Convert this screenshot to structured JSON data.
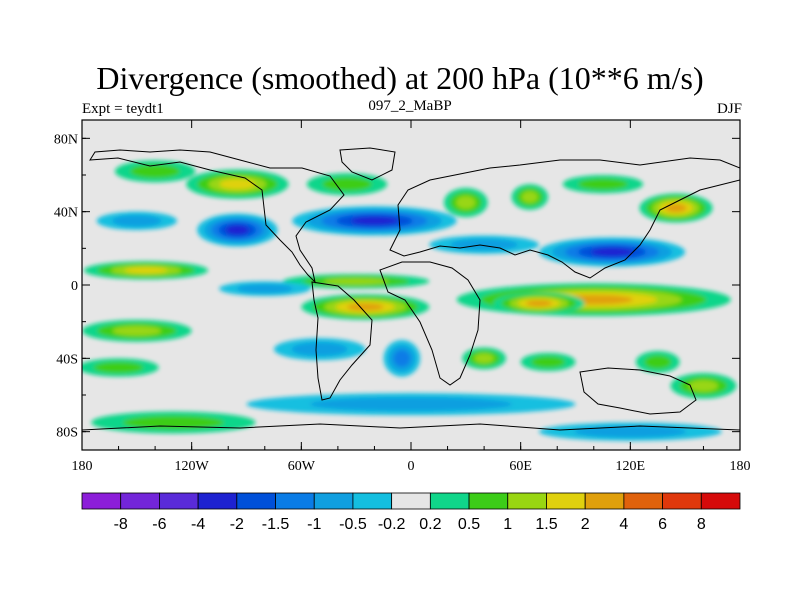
{
  "header": {
    "title": "Divergence (smoothed) at 200 hPa (10**6 m/s)",
    "left_label": "Expt = teydt1",
    "center_label": "097_2_MaBP",
    "right_label": "DJF"
  },
  "chart_data": {
    "type": "heatmap",
    "title": "Divergence (smoothed) at 200 hPa (10**6 m/s)",
    "xlabel": "",
    "ylabel": "",
    "xlim": [
      -180,
      180
    ],
    "ylim": [
      -90,
      90
    ],
    "x_ticks": [
      {
        "value": -180,
        "label": "180"
      },
      {
        "value": -120,
        "label": "120W"
      },
      {
        "value": -60,
        "label": "60W"
      },
      {
        "value": 0,
        "label": "0"
      },
      {
        "value": 60,
        "label": "60E"
      },
      {
        "value": 120,
        "label": "120E"
      },
      {
        "value": 180,
        "label": "180"
      }
    ],
    "y_ticks": [
      {
        "value": 80,
        "label": "80N"
      },
      {
        "value": 40,
        "label": "40N"
      },
      {
        "value": 0,
        "label": "0"
      },
      {
        "value": -40,
        "label": "40S"
      },
      {
        "value": -80,
        "label": "80S"
      }
    ],
    "colorbar": {
      "labels": [
        "-8",
        "-6",
        "-4",
        "-2",
        "-1.5",
        "-1",
        "-0.5",
        "-0.2",
        "0.2",
        "0.5",
        "1",
        "1.5",
        "2",
        "4",
        "6",
        "8"
      ],
      "colors": [
        "#8c1ed9",
        "#7325d9",
        "#5a2bd9",
        "#1e22d1",
        "#0050d9",
        "#0a7ce6",
        "#109fe0",
        "#14bfe0",
        "#e6e6e6",
        "#10d68a",
        "#3ccd18",
        "#99d612",
        "#e0d10e",
        "#e0a00c",
        "#e0620c",
        "#e0380c",
        "#d60a0a"
      ]
    },
    "anomalies": [
      {
        "lon": -145,
        "lat": 8,
        "rx": 34,
        "ry": 5,
        "value": 1.6
      },
      {
        "lon": -150,
        "lat": -25,
        "rx": 30,
        "ry": 6,
        "value": 1.2
      },
      {
        "lon": -160,
        "lat": -45,
        "rx": 22,
        "ry": 5,
        "value": 1.0
      },
      {
        "lon": -95,
        "lat": 55,
        "rx": 28,
        "ry": 8,
        "value": 1.6
      },
      {
        "lon": -140,
        "lat": 62,
        "rx": 22,
        "ry": 6,
        "value": 0.8
      },
      {
        "lon": -35,
        "lat": 55,
        "rx": 22,
        "ry": 6,
        "value": 0.8
      },
      {
        "lon": -95,
        "lat": 30,
        "rx": 22,
        "ry": 9,
        "value": -2.4
      },
      {
        "lon": -20,
        "lat": 35,
        "rx": 45,
        "ry": 8,
        "value": -2.1
      },
      {
        "lon": -150,
        "lat": 35,
        "rx": 22,
        "ry": 5,
        "value": -0.8
      },
      {
        "lon": 110,
        "lat": 18,
        "rx": 40,
        "ry": 8,
        "value": -2.2
      },
      {
        "lon": 40,
        "lat": 22,
        "rx": 30,
        "ry": 5,
        "value": -0.8
      },
      {
        "lon": 30,
        "lat": 45,
        "rx": 12,
        "ry": 8,
        "value": 1.1
      },
      {
        "lon": 65,
        "lat": 48,
        "rx": 10,
        "ry": 7,
        "value": 1.1
      },
      {
        "lon": 145,
        "lat": 42,
        "rx": 20,
        "ry": 8,
        "value": 2.2
      },
      {
        "lon": 105,
        "lat": 55,
        "rx": 22,
        "ry": 5,
        "value": 1.0
      },
      {
        "lon": -25,
        "lat": -12,
        "rx": 35,
        "ry": 7,
        "value": 2.8
      },
      {
        "lon": -30,
        "lat": 2,
        "rx": 40,
        "ry": 4,
        "value": 1.4
      },
      {
        "lon": 100,
        "lat": -8,
        "rx": 75,
        "ry": 9,
        "value": 2.2
      },
      {
        "lon": 70,
        "lat": -10,
        "rx": 25,
        "ry": 6,
        "value": 3.2
      },
      {
        "lon": -80,
        "lat": -2,
        "rx": 25,
        "ry": 4,
        "value": -0.6
      },
      {
        "lon": -50,
        "lat": -35,
        "rx": 25,
        "ry": 6,
        "value": -0.8
      },
      {
        "lon": -5,
        "lat": -40,
        "rx": 10,
        "ry": 10,
        "value": -1.2
      },
      {
        "lon": 40,
        "lat": -40,
        "rx": 12,
        "ry": 6,
        "value": 1.3
      },
      {
        "lon": 75,
        "lat": -42,
        "rx": 15,
        "ry": 5,
        "value": 0.8
      },
      {
        "lon": 135,
        "lat": -42,
        "rx": 12,
        "ry": 6,
        "value": 0.8
      },
      {
        "lon": 160,
        "lat": -55,
        "rx": 18,
        "ry": 7,
        "value": 1.2
      },
      {
        "lon": 0,
        "lat": -65,
        "rx": 90,
        "ry": 6,
        "value": -0.6
      },
      {
        "lon": 120,
        "lat": -80,
        "rx": 50,
        "ry": 5,
        "value": -0.8
      },
      {
        "lon": -130,
        "lat": -75,
        "rx": 45,
        "ry": 6,
        "value": 0.6
      }
    ]
  }
}
